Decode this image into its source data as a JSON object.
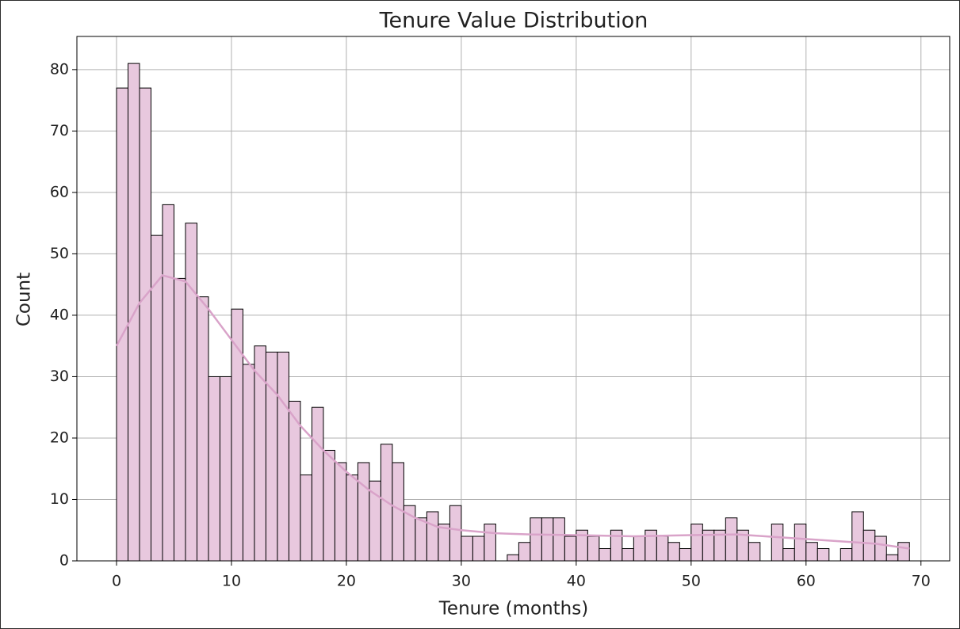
{
  "chart_data": {
    "type": "histogram",
    "title": "Tenure Value Distribution",
    "x_label": "Tenure (months)",
    "y_label": "Count",
    "bins": [
      0,
      1,
      2,
      3,
      4,
      5,
      6,
      7,
      8,
      9,
      10,
      11,
      12,
      13,
      14,
      15,
      16,
      17,
      18,
      19,
      20,
      21,
      22,
      23,
      24,
      25,
      26,
      27,
      28,
      29,
      30,
      31,
      32,
      33,
      34,
      35,
      36,
      37,
      38,
      39,
      40,
      41,
      42,
      43,
      44,
      45,
      46,
      47,
      48,
      49,
      50,
      51,
      52,
      53,
      54,
      55,
      56,
      57,
      58,
      59,
      60,
      61,
      62,
      63,
      64,
      65,
      66,
      67,
      68,
      69
    ],
    "values": [
      77,
      81,
      77,
      53,
      58,
      46,
      55,
      43,
      30,
      30,
      41,
      32,
      35,
      34,
      34,
      26,
      14,
      25,
      18,
      16,
      14,
      16,
      13,
      19,
      16,
      9,
      7,
      8,
      6,
      9,
      4,
      4,
      6,
      0,
      1,
      3,
      7,
      7,
      7,
      4,
      5,
      4,
      2,
      5,
      2,
      4,
      5,
      4,
      3,
      2,
      6,
      5,
      5,
      7,
      5,
      3,
      0,
      6,
      2,
      6,
      3,
      2,
      0,
      2,
      8,
      5,
      4,
      1,
      3
    ],
    "color": "#e8c8de",
    "kde": {
      "x": [
        0,
        2,
        4,
        6,
        8,
        10,
        12,
        14,
        16,
        18,
        20,
        22,
        24,
        26,
        28,
        30,
        33,
        36,
        40,
        45,
        50,
        54,
        58,
        62,
        66,
        69
      ],
      "values": [
        35,
        42,
        46.5,
        45.5,
        41,
        36,
        31,
        27,
        22,
        18,
        14.5,
        11.5,
        9,
        7,
        5.5,
        5,
        4.5,
        4.3,
        4.2,
        4,
        4.2,
        4.3,
        3.8,
        3.3,
        2.8,
        2
      ],
      "color": "#d9a3c9"
    },
    "xlim": [
      -3.45,
      72.5
    ],
    "ylim": [
      0,
      85.4
    ],
    "xticks": [
      0,
      10,
      20,
      30,
      40,
      50,
      60,
      70
    ],
    "yticks": [
      0,
      10,
      20,
      30,
      40,
      50,
      60,
      70,
      80
    ],
    "grid": true
  }
}
